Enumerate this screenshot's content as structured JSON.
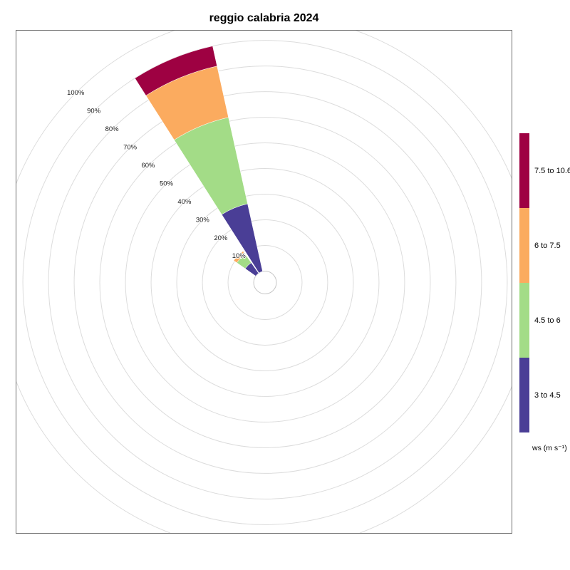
{
  "title": "reggio calabria 2024",
  "chart_data": {
    "type": "wind-rose",
    "title": "reggio calabria 2024",
    "radial_unit": "percent frequency",
    "grid": true,
    "legend_title": "ws (m s⁻¹)",
    "radial_ticks": [
      {
        "label": "10%",
        "value": 10
      },
      {
        "label": "20%",
        "value": 20
      },
      {
        "label": "30%",
        "value": 30
      },
      {
        "label": "40%",
        "value": 40
      },
      {
        "label": "50%",
        "value": 50
      },
      {
        "label": "60%",
        "value": 60
      },
      {
        "label": "70%",
        "value": 70
      },
      {
        "label": "80%",
        "value": 80
      },
      {
        "label": "90%",
        "value": 90
      },
      {
        "label": "100%",
        "value": 100
      }
    ],
    "speed_bins": [
      {
        "label": "3 to 4.5",
        "color": "#4A3E96"
      },
      {
        "label": "4.5 to 6",
        "color": "#A3DC87"
      },
      {
        "label": "6 to 7.5",
        "color": "#FBAB5F"
      },
      {
        "label": "7.5 to 10.6",
        "color": "#9E0142"
      }
    ],
    "directions": [
      {
        "name": "NNW",
        "center_deg": 337.5,
        "values_pct_by_bin": [
          27,
          34.5,
          20.5,
          8
        ],
        "total_pct": 90
      },
      {
        "name": "NW",
        "center_deg": 315,
        "values_pct_by_bin": [
          5,
          4,
          1.5,
          0
        ],
        "total_pct": 10.5
      }
    ]
  },
  "colors": {
    "grid_line": "#dcdcdc",
    "center_circle_stroke": "#c6c6c6",
    "wedge_edge": "#ffffff",
    "text": "#000000"
  }
}
